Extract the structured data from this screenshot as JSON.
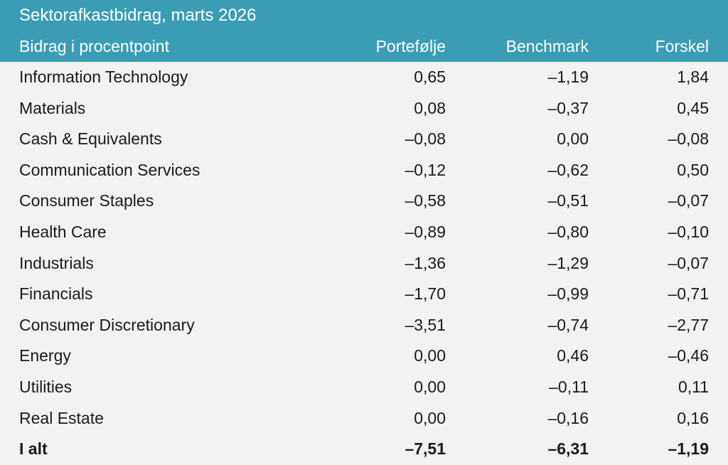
{
  "chart_data": {
    "type": "table",
    "title": "Sektorafkastbidrag, marts 2026",
    "columns": [
      "Bidrag i procentpoint",
      "Portefølje",
      "Benchmark",
      "Forskel"
    ],
    "rows": [
      {
        "sector": "Information Technology",
        "portefolje": "0,65",
        "benchmark": "–1,19",
        "forskel": "1,84"
      },
      {
        "sector": "Materials",
        "portefolje": "0,08",
        "benchmark": "–0,37",
        "forskel": "0,45"
      },
      {
        "sector": "Cash & Equivalents",
        "portefolje": "–0,08",
        "benchmark": "0,00",
        "forskel": "–0,08"
      },
      {
        "sector": "Communication Services",
        "portefolje": "–0,12",
        "benchmark": "–0,62",
        "forskel": "0,50"
      },
      {
        "sector": "Consumer Staples",
        "portefolje": "–0,58",
        "benchmark": "–0,51",
        "forskel": "–0,07"
      },
      {
        "sector": "Health Care",
        "portefolje": "–0,89",
        "benchmark": "–0,80",
        "forskel": "–0,10"
      },
      {
        "sector": "Industrials",
        "portefolje": "–1,36",
        "benchmark": "–1,29",
        "forskel": "–0,07"
      },
      {
        "sector": "Financials",
        "portefolje": "–1,70",
        "benchmark": "–0,99",
        "forskel": "–0,71"
      },
      {
        "sector": "Consumer Discretionary",
        "portefolje": "–3,51",
        "benchmark": "–0,74",
        "forskel": "–2,77"
      },
      {
        "sector": "Energy",
        "portefolje": "0,00",
        "benchmark": "0,46",
        "forskel": "–0,46"
      },
      {
        "sector": "Utilities",
        "portefolje": "0,00",
        "benchmark": "–0,11",
        "forskel": "0,11"
      },
      {
        "sector": "Real Estate",
        "portefolje": "0,00",
        "benchmark": "–0,16",
        "forskel": "0,16"
      }
    ],
    "total": {
      "sector": "I alt",
      "portefolje": "–7,51",
      "benchmark": "–6,31",
      "forskel": "–1,19"
    }
  },
  "colors": {
    "header_bg": "#3a9db5",
    "header_text": "#ffffff",
    "body_bg": "#f2f2f2"
  }
}
